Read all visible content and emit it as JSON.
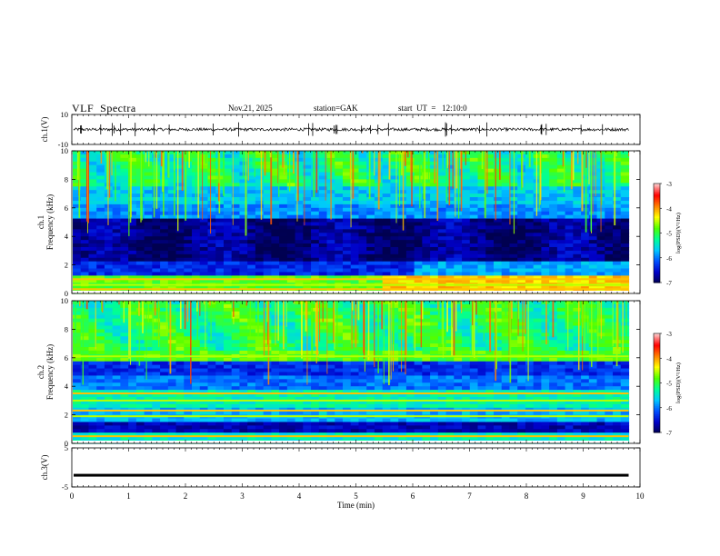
{
  "header": {
    "title": "VLF  Spectra",
    "date": "Nov.21, 2025",
    "station": "station=GAK",
    "start": "start  UT  =   12:10:0"
  },
  "chart_data": [
    {
      "type": "line",
      "panel": "ch1-waveform",
      "ylabel": "ch.1(V)",
      "ylim": [
        -10,
        10
      ],
      "yticks": [
        "10",
        "-10"
      ],
      "description_values": {
        "baseline": 0,
        "noise_amplitude": 1,
        "spike_amplitude": 5
      }
    },
    {
      "type": "heatmap",
      "panel": "ch1-spectrogram",
      "ylabel_line1": "ch.1",
      "ylabel_line2": "Frequency  (kHz)",
      "ylim": [
        0,
        10
      ],
      "yticks": [
        "0",
        "2",
        "4",
        "6",
        "8",
        "10"
      ],
      "colorbar": {
        "label": "log(PSD)(V²/Hz)",
        "ticks": [
          "-3",
          "-4",
          "-5",
          "-6",
          "-7"
        ],
        "range": [
          -7,
          -3
        ]
      },
      "bands_khz": [
        0.3,
        0.6,
        1.0
      ],
      "x_extent_min": [
        0,
        9.8
      ]
    },
    {
      "type": "heatmap",
      "panel": "ch2-spectrogram",
      "ylabel_line1": "ch.2",
      "ylabel_line2": "Frequency  (kHz)",
      "ylim": [
        0,
        10
      ],
      "yticks": [
        "0",
        "2",
        "4",
        "6",
        "8",
        "10"
      ],
      "colorbar": {
        "label": "log(PSD)(V²/Hz)",
        "ticks": [
          "-3",
          "-4",
          "-5",
          "-6",
          "-7"
        ],
        "range": [
          -7,
          -3
        ]
      },
      "bands_khz": [
        0.5,
        1.9,
        2.3,
        3.0,
        3.5,
        6.1
      ],
      "x_extent_min": [
        0,
        9.8
      ]
    },
    {
      "type": "line",
      "panel": "ch3-waveform",
      "ylabel": "ch.3(V)",
      "ylim": [
        -5,
        5
      ],
      "yticks": [
        "5",
        "-5"
      ],
      "xlabel": "Time  (min)",
      "xlim": [
        0,
        10
      ],
      "xticks": [
        "0",
        "1",
        "2",
        "3",
        "4",
        "5",
        "6",
        "7",
        "8",
        "9",
        "10"
      ],
      "description_values": {
        "baseline": -2
      }
    }
  ],
  "colors": {
    "colormap": [
      "#000050",
      "#0000c8",
      "#0050ff",
      "#00c8ff",
      "#00ff96",
      "#50ff00",
      "#ffff00",
      "#ff8000",
      "#ff0000",
      "#ffc8c8"
    ]
  }
}
